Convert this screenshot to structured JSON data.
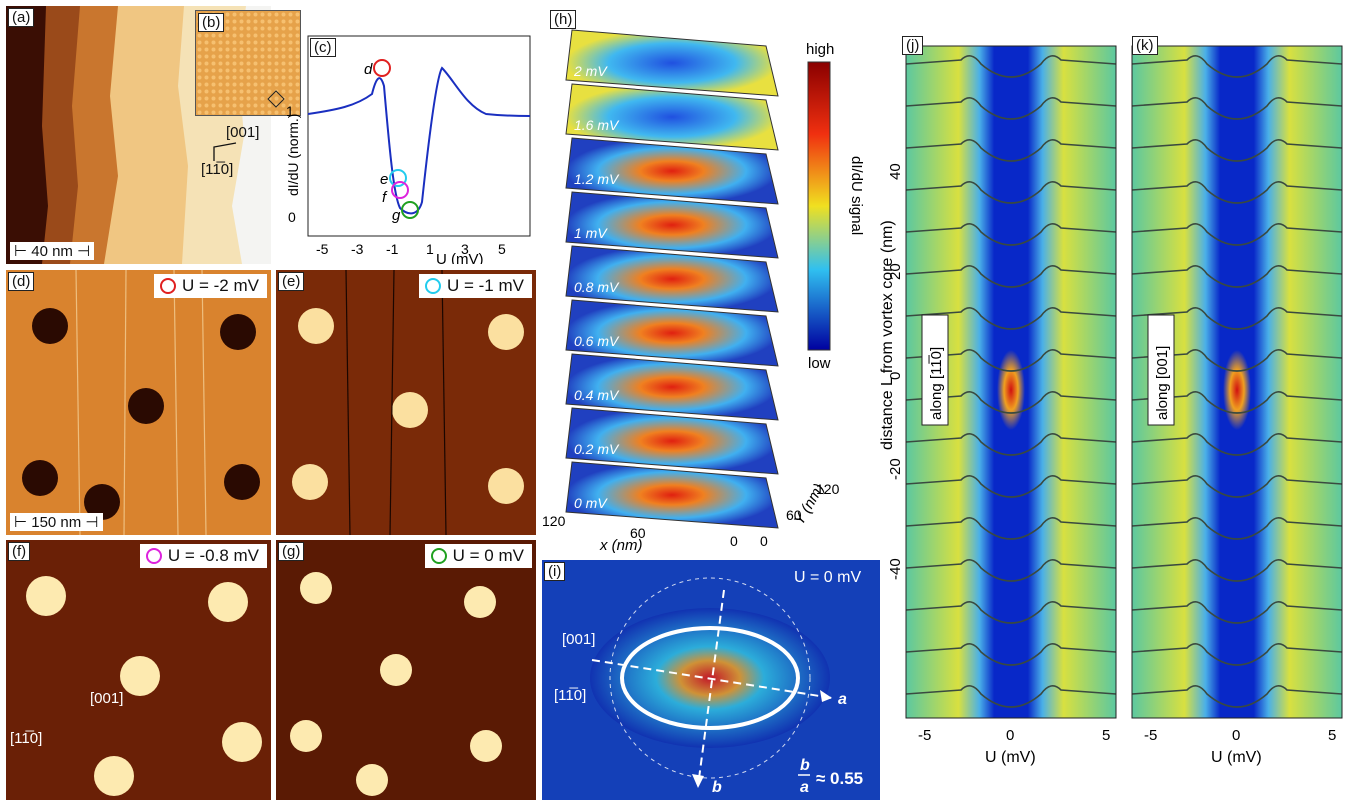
{
  "panel_a": {
    "label": "(a)",
    "scale": "⊢ 40 nm ⊣",
    "dir1": "[001]",
    "dir2": "[11̅0]"
  },
  "panel_b": {
    "label": "(b)"
  },
  "panel_c": {
    "label": "(c)",
    "ylabel": "dI/dU (norm.)",
    "xlabel": "U (mV)",
    "xticks": [
      "-5",
      "-3",
      "-1",
      "1",
      "3",
      "5"
    ],
    "yticks": [
      "0",
      "1"
    ],
    "points": [
      "d",
      "e",
      "f",
      "g"
    ],
    "colors": {
      "d": "#e02020",
      "e": "#22ccee",
      "f": "#dd22dd",
      "g": "#20a020"
    }
  },
  "panel_d": {
    "label": "(d)",
    "volt": "U = -2 mV",
    "scale": "⊢ 150 nm ⊣"
  },
  "panel_e": {
    "label": "(e)",
    "volt": "U = -1 mV"
  },
  "panel_f": {
    "label": "(f)",
    "volt": "U = -0.8 mV",
    "dir1": "[001]",
    "dir2": "[11̅0]"
  },
  "panel_g": {
    "label": "(g)",
    "volt": "U = 0 mV"
  },
  "panel_h": {
    "label": "(h)",
    "layers": [
      "2 mV",
      "1.6 mV",
      "1.2 mV",
      "1 mV",
      "0.8 mV",
      "0.6 mV",
      "0.4 mV",
      "0.2 mV",
      "0 mV"
    ],
    "colorbar_high": "high",
    "colorbar_low": "low",
    "colorbar_label": "dI/dU signal",
    "xaxis": "x (nm)",
    "yaxis": "Y (nm)",
    "xticks": [
      "120",
      "60",
      "0"
    ],
    "yticks": [
      "0",
      "60",
      "120"
    ]
  },
  "panel_i": {
    "label": "(i)",
    "volt": "U = 0 mV",
    "dir1": "[001]",
    "dir2": "[11̅0]",
    "axis_a": "a",
    "axis_b": "b",
    "ratio": "≈ 0.55",
    "ratio_num": "b",
    "ratio_den": "a"
  },
  "panel_j": {
    "label": "(j)",
    "along": "along [11̅0]"
  },
  "panel_k": {
    "label": "(k)",
    "along": "along [001]"
  },
  "panel_jk": {
    "ylabel": "distance L from vortex core (nm)",
    "xlabel": "U (mV)",
    "xticks": [
      "-5",
      "0",
      "5"
    ],
    "yticks": [
      "40",
      "20",
      "0",
      "-20",
      "-40"
    ]
  }
}
